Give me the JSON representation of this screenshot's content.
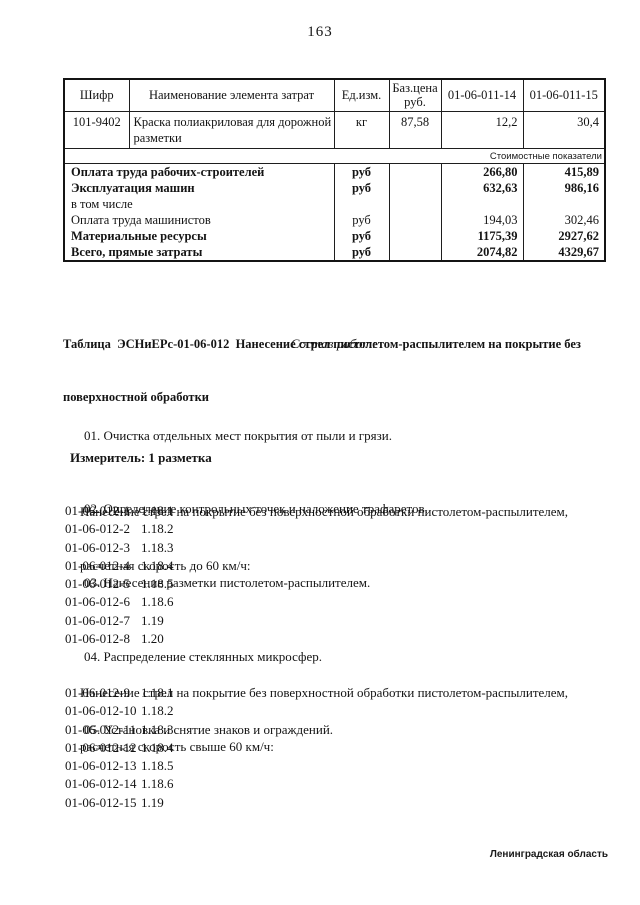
{
  "page": {
    "number": "163",
    "footer": "Ленинградская область"
  },
  "cost_table": {
    "col_headers": [
      "Шифр",
      "Наименование элемента затрат",
      "Ед.изм.",
      "Баз.цена руб.",
      "01-06-011-14",
      "01-06-011-15"
    ],
    "material_row": {
      "code": "101-9402",
      "name": "Краска полиакриловая для дорожной разметки",
      "unit": "кг",
      "base_price": "87,58",
      "v14": "12,2",
      "v15": "30,4"
    },
    "section_label": "Стоимостные показатели",
    "cost_rows": [
      {
        "label": "Оплата труда рабочих-строителей",
        "unit": "руб",
        "v14": "266,80",
        "v15": "415,89",
        "bold": true
      },
      {
        "label": "Эксплуатация машин",
        "unit": "руб",
        "v14": "632,63",
        "v15": "986,16",
        "bold": true
      },
      {
        "label": "в том числе",
        "unit": "",
        "v14": "",
        "v15": "",
        "bold": false
      },
      {
        "label": "Оплата труда машинистов",
        "unit": "руб",
        "v14": "194,03",
        "v15": "302,46",
        "bold": false
      },
      {
        "label": "Материальные ресурсы",
        "unit": "руб",
        "v14": "1175,39",
        "v15": "2927,62",
        "bold": true
      },
      {
        "label": "Всего, прямые затраты",
        "unit": "руб",
        "v14": "2074,82",
        "v15": "4329,67",
        "bold": true
      }
    ]
  },
  "section": {
    "heading_lines": [
      "Таблица  ЭСНиЕРс-01-06-012  Нанесение стрел пистолетом-распылителем на покрытие без",
      "поверхностной обработки"
    ],
    "composition_title": "Состав работ:",
    "work_items": [
      "01. Очистка отдельных мест покрытия от пыли и грязи.",
      "02. Определение контрольных точек и наложение трафаретов.",
      "03. Нанесение разметки пистолетом-распылителем.",
      "04. Распределение стеклянных микросфер.",
      "05. Установка и снятие знаков и ограждений."
    ],
    "measurer": "Измеритель: 1 разметка",
    "groups": [
      {
        "description_lines": [
          "Нанесение стрел на покрытие без поверхностной обработки пистолетом-распылителем,",
          "расчетная скорость до 60 км/ч:"
        ],
        "codes": [
          {
            "code": "01-06-012-1",
            "ref": "1.18.1"
          },
          {
            "code": "01-06-012-2",
            "ref": "1.18.2"
          },
          {
            "code": "01-06-012-3",
            "ref": "1.18.3"
          },
          {
            "code": "01-06-012-4",
            "ref": "1.18.4"
          },
          {
            "code": "01-06-012-5",
            "ref": "1.18.5"
          },
          {
            "code": "01-06-012-6",
            "ref": "1.18.6"
          },
          {
            "code": "01-06-012-7",
            "ref": "1.19"
          },
          {
            "code": "01-06-012-8",
            "ref": "1.20"
          }
        ]
      },
      {
        "description_lines": [
          "Нанесение стрел на покрытие без поверхностной обработки пистолетом-распылителем,",
          "расчетная скорость свыше 60 км/ч:"
        ],
        "codes": [
          {
            "code": "01-06-012-9",
            "ref": "1.18.1"
          },
          {
            "code": "01-06-012-10",
            "ref": "1.18.2"
          },
          {
            "code": "01-06-012-11",
            "ref": "1.18.3"
          },
          {
            "code": "01-06-012-12",
            "ref": "1.18.4"
          },
          {
            "code": "01-06-012-13",
            "ref": "1.18.5"
          },
          {
            "code": "01-06-012-14",
            "ref": "1.18.6"
          },
          {
            "code": "01-06-012-15",
            "ref": "1.19"
          }
        ]
      }
    ]
  }
}
